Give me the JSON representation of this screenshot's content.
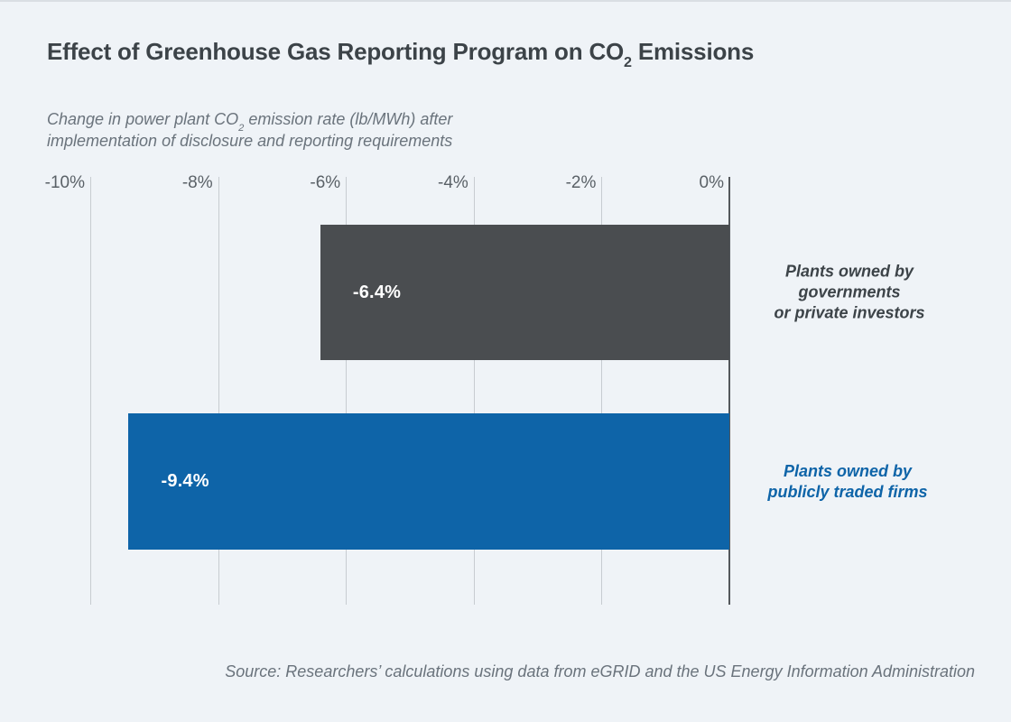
{
  "page": {
    "background": "#eff3f7"
  },
  "title": {
    "text_before_sub": "Effect of Greenhouse Gas Reporting Program on CO",
    "subscript": "2",
    "text_after_sub": " Emissions"
  },
  "subtitle": {
    "line1_before_sub": "Change in power plant CO",
    "line1_subscript": "2",
    "line1_after_sub": " emission rate (lb/MWh) after",
    "line2": "implementation of disclosure and reporting requirements"
  },
  "chart_data": {
    "type": "bar",
    "orientation": "horizontal",
    "title": "Effect of Greenhouse Gas Reporting Program on CO2 Emissions",
    "subtitle": "Change in power plant CO2 emission rate (lb/MWh) after implementation of disclosure and reporting requirements",
    "categories": [
      "Plants owned by governments or private investors",
      "Plants owned by publicly traded firms"
    ],
    "category_lines": [
      [
        "Plants owned by",
        "governments",
        "or private investors"
      ],
      [
        "Plants owned by",
        "publicly traded firms"
      ]
    ],
    "values": [
      -6.4,
      -9.4
    ],
    "value_labels": [
      "-6.4%",
      "-9.4%"
    ],
    "bar_colors": [
      "#4a4d50",
      "#0e64a8"
    ],
    "category_colors": [
      "#3c4348",
      "#0e64a8"
    ],
    "x_ticks": [
      "-10%",
      "-8%",
      "-6%",
      "-4%",
      "-2%",
      "0%"
    ],
    "xlim": [
      -10,
      0
    ],
    "grid": "vertical",
    "gridline_color": "#c7ccd1",
    "zero_line_color": "#54585c",
    "legend": "none"
  },
  "source": "Source: Researchers’ calculations using data from eGRID and the US Energy Information Administration"
}
